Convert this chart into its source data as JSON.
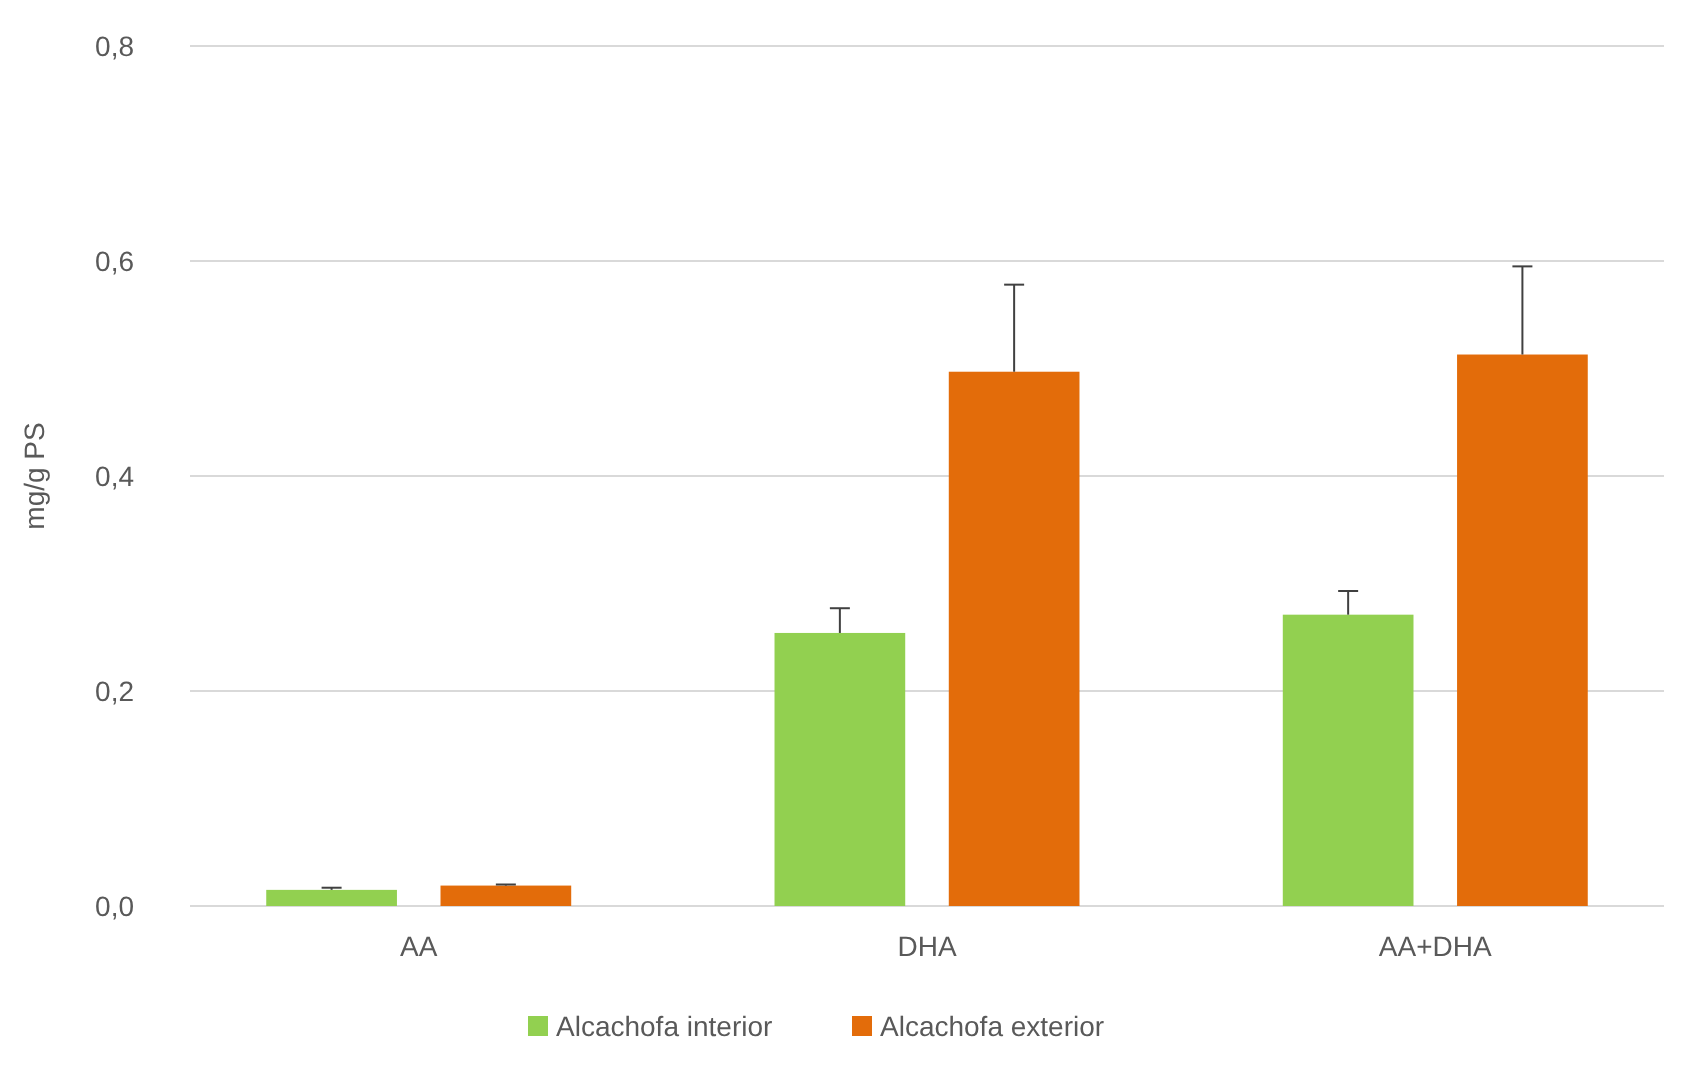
{
  "chart_data": {
    "type": "bar",
    "ylabel": "mg/g PS",
    "categories": [
      "AA",
      "DHA",
      "AA+DHA"
    ],
    "series": [
      {
        "name": "Alcachofa interior",
        "color": "#92d050",
        "values": [
          0.015,
          0.254,
          0.271
        ],
        "errors": [
          0.002,
          0.023,
          0.022
        ]
      },
      {
        "name": "Alcachofa exterior",
        "color": "#e36c0a",
        "values": [
          0.019,
          0.497,
          0.513
        ],
        "errors": [
          0.001,
          0.081,
          0.082
        ]
      }
    ],
    "ylim": [
      0,
      0.8
    ],
    "yticks": [
      {
        "value": 0,
        "label": "0,0"
      },
      {
        "value": 0.2,
        "label": "0,2"
      },
      {
        "value": 0.4,
        "label": "0,4"
      },
      {
        "value": 0.6,
        "label": "0,6"
      },
      {
        "value": 0.8,
        "label": "0,8"
      }
    ],
    "grid": "y",
    "legend": "bottom"
  }
}
